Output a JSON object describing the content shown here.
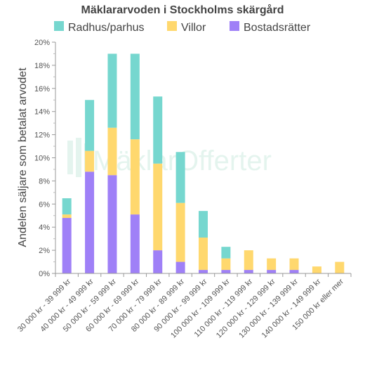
{
  "chart_data": {
    "type": "bar",
    "stacked": true,
    "title": "Mäklararvoden i Stockholms skärgård",
    "ylabel": "Andelen säljare som betalat arvodet",
    "xlabel": "",
    "ylim": [
      0,
      20
    ],
    "yticks": [
      "0%",
      "2%",
      "4%",
      "6%",
      "8%",
      "10%",
      "12%",
      "14%",
      "16%",
      "18%",
      "20%"
    ],
    "grid": false,
    "legend_position": "top",
    "watermark": "MäklarOfferter",
    "categories": [
      "30 000 kr - 39 999 kr",
      "40 000 kr - 49 999 kr",
      "50 000 kr - 59 999 kr",
      "60 000 kr - 69 999 kr",
      "70 000 kr - 79 999 kr",
      "80 000 kr - 89 999 kr",
      "90 000 kr - 99 999 kr",
      "100 000 kr - 109 999 kr",
      "110 000 kr - 119 999 kr",
      "120 000 kr - 129 999 kr",
      "130 000 kr - 139 999 kr",
      "140 000 kr - 149 999 kr",
      "150 000 kr eller mer"
    ],
    "series": [
      {
        "name": "Bostadsrätter",
        "color": "#9f80f7",
        "values": [
          4.8,
          8.8,
          8.5,
          5.1,
          2.0,
          1.0,
          0.3,
          0.3,
          0.3,
          0.3,
          0.3,
          0.0,
          0.0
        ]
      },
      {
        "name": "Villor",
        "color": "#ffd86e",
        "values": [
          0.3,
          1.8,
          4.1,
          6.5,
          7.5,
          5.1,
          2.8,
          1.0,
          1.7,
          1.0,
          1.0,
          0.6,
          1.0
        ]
      },
      {
        "name": "Radhus/parhus",
        "color": "#76d7cf",
        "values": [
          1.4,
          4.4,
          6.4,
          7.4,
          5.8,
          4.4,
          2.3,
          1.0,
          0.0,
          0.0,
          0.0,
          0.0,
          0.0
        ]
      }
    ],
    "legend_order": [
      "Radhus/parhus",
      "Villor",
      "Bostadsrätter"
    ]
  }
}
